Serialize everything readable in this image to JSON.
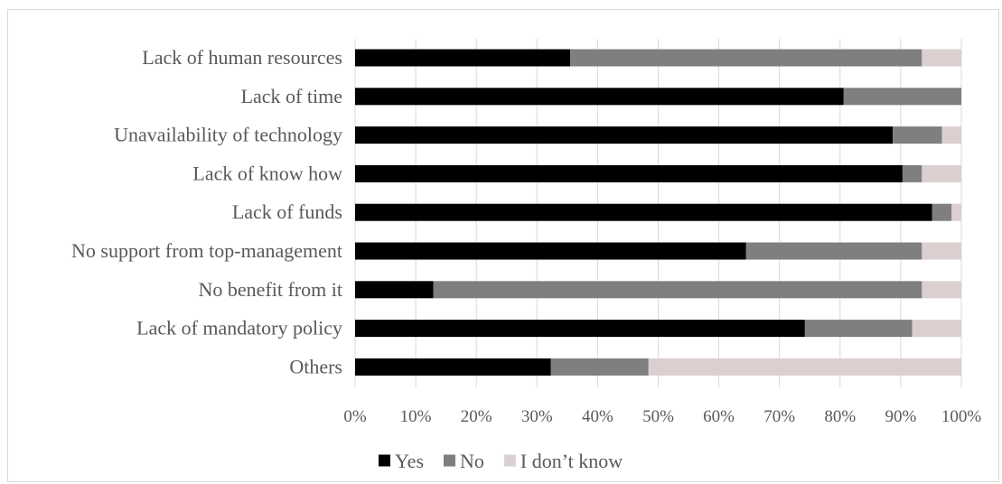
{
  "chart_data": {
    "type": "bar",
    "orientation": "horizontal",
    "stacked": "percent",
    "categories": [
      "Lack of human resources",
      "Lack of time",
      "Unavailability of technology",
      "Lack of know how",
      "Lack of funds",
      "No support from top-management",
      "No benefit from it",
      "Lack of mandatory policy",
      "Others"
    ],
    "series": [
      {
        "name": "Yes",
        "color": "#000000",
        "values": [
          35.5,
          80.6,
          88.7,
          90.3,
          95.2,
          64.5,
          12.9,
          74.2,
          32.3
        ]
      },
      {
        "name": "No",
        "color": "#7f7f7f",
        "values": [
          58.0,
          19.4,
          8.1,
          3.2,
          3.2,
          29.0,
          80.6,
          17.7,
          16.1
        ]
      },
      {
        "name": "I don’t know",
        "color": "#dccfcf",
        "values": [
          6.5,
          0.0,
          3.2,
          6.5,
          1.6,
          6.5,
          6.5,
          8.1,
          51.6
        ]
      }
    ],
    "x_ticks": [
      "0%",
      "10%",
      "20%",
      "30%",
      "40%",
      "50%",
      "60%",
      "70%",
      "80%",
      "90%",
      "100%"
    ],
    "xlim": [
      0,
      100
    ],
    "grid": true,
    "legend_position": "bottom",
    "title": "",
    "xlabel": "",
    "ylabel": ""
  }
}
